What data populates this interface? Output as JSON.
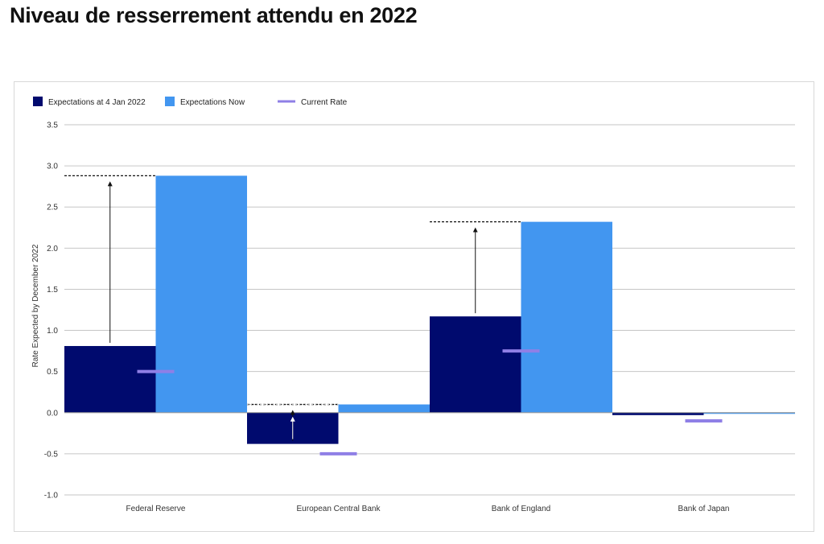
{
  "page": {
    "title": "Niveau de resserrement attendu en 2022"
  },
  "chart_data": {
    "type": "bar",
    "categories": [
      "Federal Reserve",
      "European Central Bank",
      "Bank of England",
      "Bank of Japan"
    ],
    "series": [
      {
        "name": "Expectations at 4 Jan 2022",
        "values": [
          0.81,
          -0.38,
          1.17,
          -0.03
        ],
        "color": "#000a6e"
      },
      {
        "name": "Expectations Now",
        "values": [
          2.88,
          0.1,
          2.32,
          0.0
        ],
        "color": "#4296f0"
      }
    ],
    "current_rate": {
      "name": "Current Rate",
      "values": [
        0.5,
        -0.5,
        0.75,
        -0.1
      ],
      "color": "#8f7fe6"
    },
    "ylabel": "Rate Expected by December 2022",
    "xlabel": "",
    "ylim": [
      -1.0,
      3.5
    ],
    "yticks": [
      "3.5",
      "3.0",
      "2.5",
      "2.0",
      "1.5",
      "1.0",
      "0.5",
      "0.0",
      "-0.5",
      "-1.0"
    ],
    "ytick_values": [
      3.5,
      3.0,
      2.5,
      2.0,
      1.5,
      1.0,
      0.5,
      0.0,
      -0.5,
      -1.0
    ],
    "grid": true,
    "legend_position": "top-left"
  }
}
